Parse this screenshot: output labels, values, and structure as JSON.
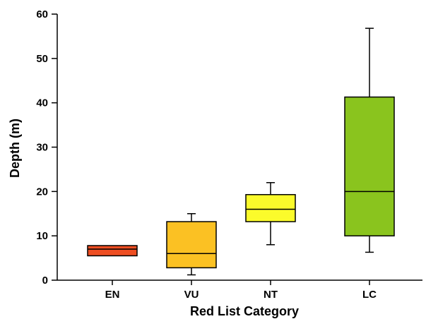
{
  "chart_data": {
    "type": "box",
    "xlabel": "Red List Category",
    "ylabel": "Depth (m)",
    "ylim": [
      0,
      60
    ],
    "yticks": [
      0,
      10,
      20,
      30,
      40,
      50,
      60
    ],
    "grid": false,
    "categories": [
      "EN",
      "VU",
      "NT",
      "LC"
    ],
    "boxes": [
      {
        "category": "EN",
        "min": 5.5,
        "q1": 5.5,
        "median": 7.0,
        "q3": 7.8,
        "max": 7.8,
        "color": "#ee4e22"
      },
      {
        "category": "VU",
        "min": 1.2,
        "q1": 2.8,
        "median": 6.0,
        "q3": 13.2,
        "max": 15.0,
        "color": "#fbc123"
      },
      {
        "category": "NT",
        "min": 8.0,
        "q1": 13.2,
        "median": 16.0,
        "q3": 19.3,
        "max": 22.0,
        "color": "#fbfb2b"
      },
      {
        "category": "LC",
        "min": 6.3,
        "q1": 10.0,
        "median": 20.0,
        "q3": 41.3,
        "max": 56.8,
        "color": "#8ac41e"
      }
    ]
  }
}
